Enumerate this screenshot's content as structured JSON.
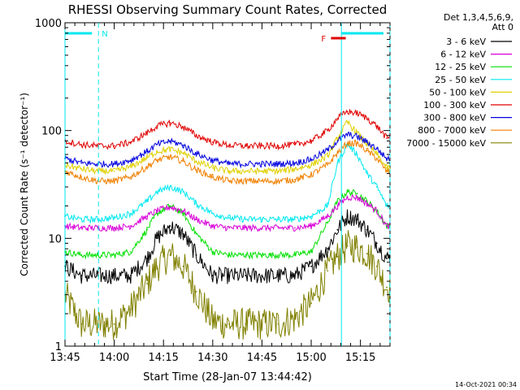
{
  "chart_data": {
    "type": "line",
    "title": "RHESSI Observing Summary Count Rates, Corrected",
    "xlabel": "Start Time (28-Jan-07 13:44:42)",
    "ylabel": "Corrected Count Rate (s⁻¹ detector⁻¹)",
    "yscale": "log",
    "ylim": [
      1,
      1000
    ],
    "xlim_minutes_after_1345": [
      0,
      99
    ],
    "x_ticks": [
      "13:45",
      "14:00",
      "14:15",
      "14:30",
      "14:45",
      "15:00",
      "15:15"
    ],
    "y_ticks": [
      "1",
      "10",
      "100",
      "1000"
    ],
    "legend": {
      "position": "top-right",
      "header": [
        "Det 1,3,4,5,6,9,",
        "Att 0"
      ]
    },
    "series": [
      {
        "name": "3 - 6 keV",
        "color": "#000000",
        "x": [
          0,
          5,
          10,
          15,
          20,
          25,
          28,
          32,
          36,
          40,
          45,
          50,
          55,
          60,
          65,
          70,
          75,
          80,
          83,
          86,
          89,
          92,
          95,
          98
        ],
        "y": [
          5.5,
          4.5,
          4.5,
          4.5,
          4.5,
          6.5,
          10,
          13,
          11,
          7,
          4.5,
          4.5,
          4.5,
          4.5,
          4.5,
          4.5,
          5.5,
          8,
          12,
          16,
          15,
          12,
          9,
          6.5
        ]
      },
      {
        "name": "6 - 12 keV",
        "color": "#d800d8",
        "x": [
          0,
          5,
          10,
          15,
          20,
          25,
          28,
          32,
          36,
          40,
          45,
          50,
          55,
          60,
          65,
          70,
          75,
          80,
          83,
          86,
          89,
          92,
          95,
          98
        ],
        "y": [
          13,
          12.5,
          12.5,
          12.5,
          13,
          16,
          18,
          19.5,
          18,
          15,
          13,
          12.5,
          12.5,
          12.5,
          12.5,
          12.5,
          13,
          16,
          20,
          24,
          24,
          21,
          18,
          13
        ]
      },
      {
        "name": "12 - 25 keV",
        "color": "#00e000",
        "x": [
          0,
          5,
          10,
          15,
          20,
          25,
          28,
          32,
          36,
          40,
          45,
          50,
          55,
          60,
          65,
          70,
          75,
          80,
          83,
          86,
          89,
          92,
          95,
          98
        ],
        "y": [
          7.5,
          7,
          7,
          7,
          7.5,
          12,
          17,
          20,
          17,
          11,
          7.5,
          7,
          7,
          7,
          7,
          7,
          7.5,
          14,
          22,
          27,
          26,
          22,
          18,
          13
        ]
      },
      {
        "name": "25 - 50 keV",
        "color": "#00e8f0",
        "x": [
          0,
          5,
          10,
          15,
          20,
          25,
          28,
          32,
          36,
          40,
          45,
          50,
          55,
          60,
          65,
          70,
          75,
          80,
          83,
          86,
          89,
          92,
          95,
          98
        ],
        "y": [
          16,
          15,
          15,
          15.5,
          17,
          22,
          27,
          30,
          27,
          21,
          17,
          15.5,
          15,
          15,
          15,
          15,
          16,
          20,
          50,
          75,
          60,
          40,
          30,
          20
        ]
      },
      {
        "name": "50 - 100 keV",
        "color": "#e0d000",
        "x": [
          0,
          5,
          10,
          15,
          20,
          25,
          28,
          32,
          36,
          40,
          45,
          50,
          55,
          60,
          65,
          70,
          75,
          80,
          83,
          86,
          89,
          92,
          95,
          98
        ],
        "y": [
          48,
          44,
          42,
          42,
          46,
          56,
          64,
          67,
          62,
          52,
          45,
          42,
          42,
          42,
          42,
          44,
          48,
          58,
          85,
          120,
          95,
          75,
          60,
          45
        ]
      },
      {
        "name": "100 - 300 keV",
        "color": "#e00000",
        "x": [
          0,
          5,
          10,
          15,
          20,
          25,
          28,
          32,
          36,
          40,
          45,
          50,
          55,
          60,
          65,
          70,
          75,
          80,
          83,
          86,
          89,
          92,
          95,
          98
        ],
        "y": [
          80,
          74,
          72,
          72,
          78,
          95,
          110,
          118,
          108,
          90,
          78,
          73,
          72,
          72,
          72,
          74,
          80,
          100,
          130,
          150,
          145,
          130,
          110,
          85
        ]
      },
      {
        "name": "300 - 800 keV",
        "color": "#0000e0",
        "x": [
          0,
          5,
          10,
          15,
          20,
          25,
          28,
          32,
          36,
          40,
          45,
          50,
          55,
          60,
          65,
          70,
          75,
          80,
          83,
          86,
          89,
          92,
          95,
          98
        ],
        "y": [
          55,
          50,
          49,
          49,
          53,
          64,
          74,
          80,
          73,
          61,
          53,
          49,
          49,
          49,
          49,
          50,
          54,
          66,
          80,
          92,
          88,
          78,
          68,
          55
        ]
      },
      {
        "name": "800 - 7000 keV",
        "color": "#f08000",
        "x": [
          0,
          5,
          10,
          15,
          20,
          25,
          28,
          32,
          36,
          40,
          45,
          50,
          55,
          60,
          65,
          70,
          75,
          80,
          83,
          86,
          89,
          92,
          95,
          98
        ],
        "y": [
          42,
          37,
          34,
          34,
          37,
          46,
          53,
          57,
          52,
          43,
          37,
          34,
          34,
          34,
          34,
          35,
          39,
          48,
          62,
          76,
          76,
          65,
          55,
          42
        ]
      },
      {
        "name": "7000 - 15000 keV",
        "color": "#808000",
        "x": [
          0,
          5,
          10,
          15,
          20,
          25,
          28,
          32,
          36,
          40,
          45,
          50,
          55,
          60,
          65,
          70,
          75,
          80,
          83,
          86,
          89,
          92,
          95,
          98
        ],
        "y": [
          3,
          1.6,
          1.6,
          1.6,
          2.2,
          3.8,
          5.5,
          7,
          5.5,
          3.2,
          1.7,
          1.6,
          1.6,
          1.6,
          1.6,
          1.8,
          2.5,
          5,
          6.8,
          8.5,
          8.3,
          7.2,
          5.5,
          3.5
        ]
      }
    ],
    "annotations": {
      "n_marker": "N",
      "f_marker": "F",
      "night_intervals_min": [
        [
          0,
          10.2
        ]
      ],
      "flag_interval_min": [
        83.5,
        87.5
      ],
      "bar_intervals_min": [
        [
          0,
          10.2
        ],
        [
          84.2,
          99
        ]
      ],
      "saa_dashed_lines_min": [
        10.2,
        99
      ],
      "vertical_lines_min": [
        0,
        84.2
      ]
    }
  },
  "footer": {
    "timestamp": "14-Oct-2021 00:34"
  }
}
